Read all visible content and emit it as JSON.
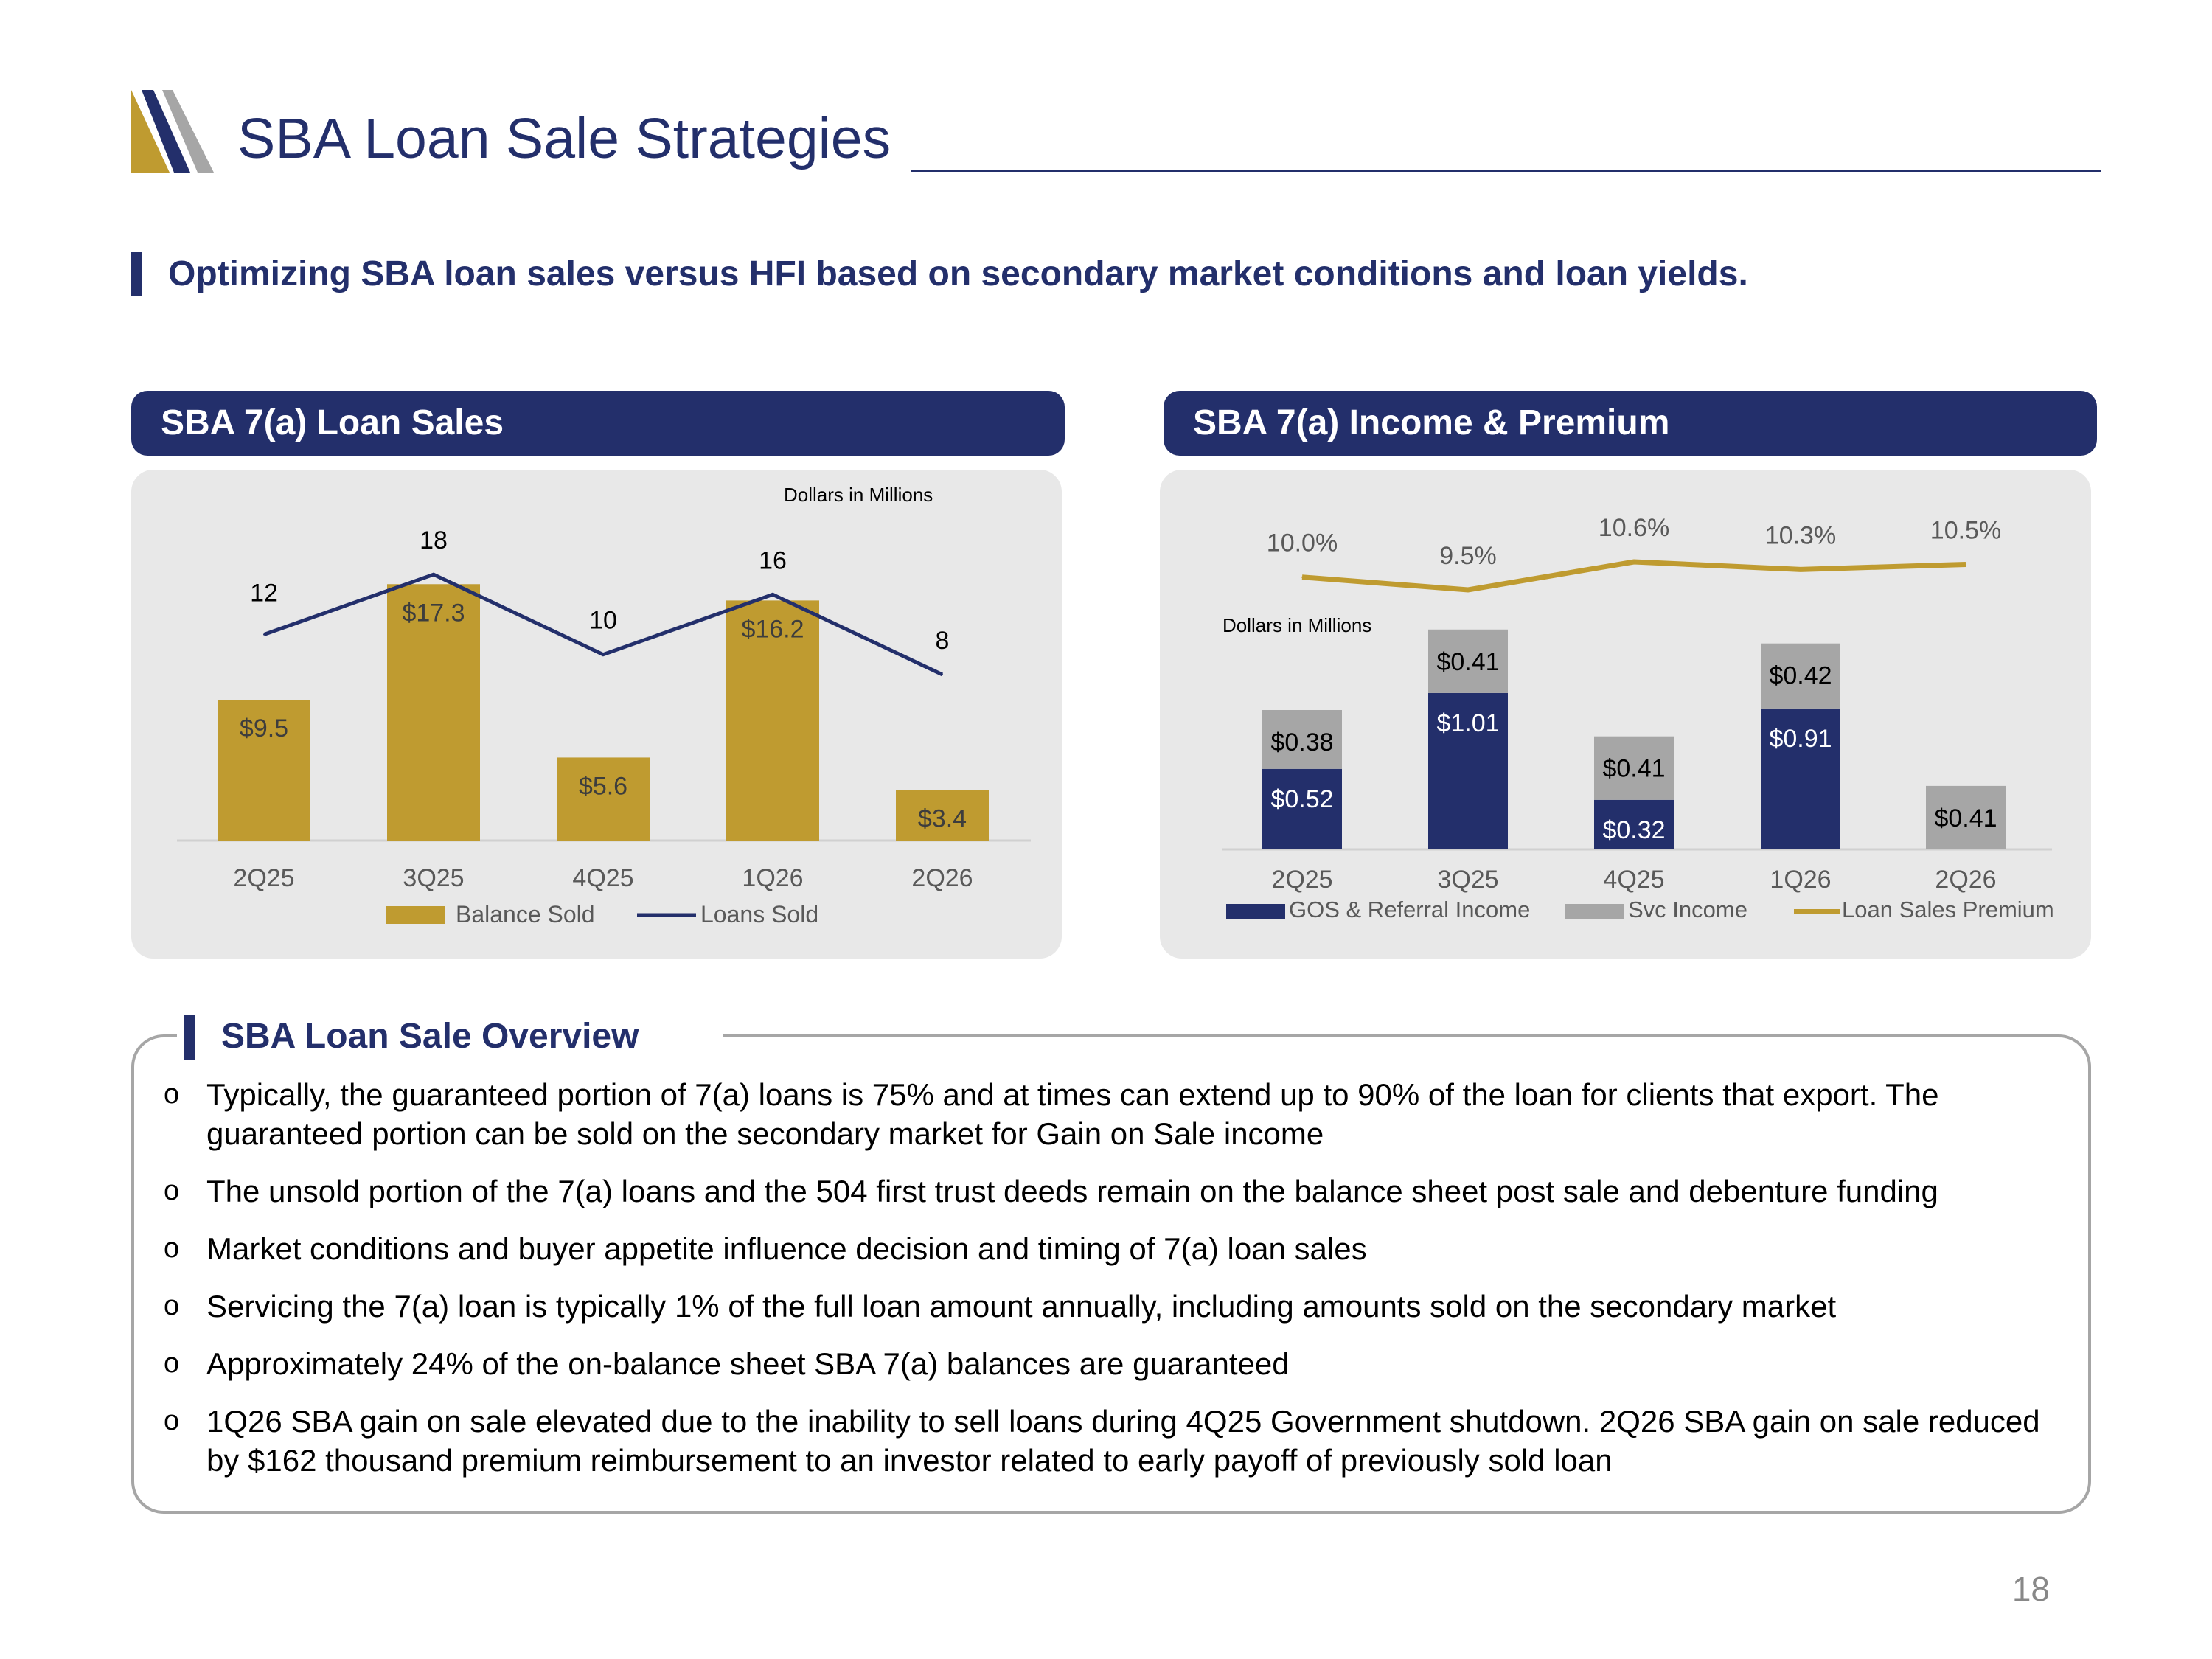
{
  "header": {
    "title": "SBA Loan Sale Strategies",
    "subtitle": "Optimizing SBA loan sales versus HFI based on secondary market conditions and loan yields."
  },
  "colors": {
    "navy": "#232f6b",
    "gold": "#bf9b30",
    "gray": "#a6a6a6",
    "panel": "#e8e8e8"
  },
  "panels": {
    "left_title": "SBA 7(a) Loan Sales",
    "right_title": "SBA 7(a) Income & Premium"
  },
  "chart_data": [
    {
      "type": "bar",
      "title": "SBA 7(a) Loan Sales",
      "note": "Dollars in Millions",
      "categories": [
        "2Q25",
        "3Q25",
        "4Q25",
        "1Q26",
        "2Q26"
      ],
      "series": [
        {
          "name": "Balance Sold",
          "kind": "bar",
          "values": [
            9.5,
            17.3,
            5.6,
            16.2,
            3.4
          ],
          "labels": [
            "$9.5",
            "$17.3",
            "$5.6",
            "$16.2",
            "$3.4"
          ]
        },
        {
          "name": "Loans Sold",
          "kind": "line",
          "values": [
            12,
            18,
            10,
            16,
            8
          ],
          "labels": [
            "12",
            "18",
            "10",
            "16",
            "8"
          ]
        }
      ],
      "legend": [
        "Balance Sold",
        "Loans Sold"
      ],
      "legend_position": "bottom",
      "grid": false
    },
    {
      "type": "bar",
      "stacked": true,
      "title": "SBA 7(a) Income & Premium",
      "note": "Dollars in Millions",
      "categories": [
        "2Q25",
        "3Q25",
        "4Q25",
        "1Q26",
        "2Q26"
      ],
      "series": [
        {
          "name": "GOS & Referral Income",
          "kind": "bar",
          "values": [
            0.52,
            1.01,
            0.32,
            0.91,
            0
          ],
          "labels": [
            "$0.52",
            "$1.01",
            "$0.32",
            "$0.91",
            ""
          ]
        },
        {
          "name": "Svc Income",
          "kind": "bar",
          "values": [
            0.38,
            0.41,
            0.41,
            0.42,
            0.41
          ],
          "labels": [
            "$0.38",
            "$0.41",
            "$0.41",
            "$0.42",
            "$0.41"
          ]
        },
        {
          "name": "Loan Sales Premium",
          "kind": "line",
          "values": [
            10.0,
            9.5,
            10.6,
            10.3,
            10.5
          ],
          "labels": [
            "10.0%",
            "9.5%",
            "10.6%",
            "10.3%",
            "10.5%"
          ]
        }
      ],
      "legend": [
        "GOS & Referral Income",
        "Svc Income",
        "Loan Sales Premium"
      ],
      "legend_position": "bottom",
      "grid": false
    }
  ],
  "overview": {
    "title": "SBA Loan Sale Overview",
    "bullet_glyph": "o",
    "items": [
      "Typically, the guaranteed portion of 7(a) loans is 75% and at times can extend up to 90% of the loan for clients that export.  The guaranteed portion can be sold on the secondary market for Gain on Sale income",
      "The unsold portion of the 7(a) loans and the 504 first trust deeds remain on the balance sheet post sale and debenture funding",
      "Market conditions and buyer appetite influence decision and timing of 7(a) loan sales",
      "Servicing the 7(a) loan is typically 1% of the full loan amount annually, including amounts sold on the secondary market",
      "Approximately 24% of the on-balance sheet SBA 7(a) balances are guaranteed",
      "1Q26 SBA gain on sale elevated due to the inability to sell loans during 4Q25 Government shutdown. 2Q26 SBA gain on sale reduced by $162 thousand premium reimbursement to an investor related to early payoff of previously sold loan"
    ]
  },
  "page_number": "18"
}
